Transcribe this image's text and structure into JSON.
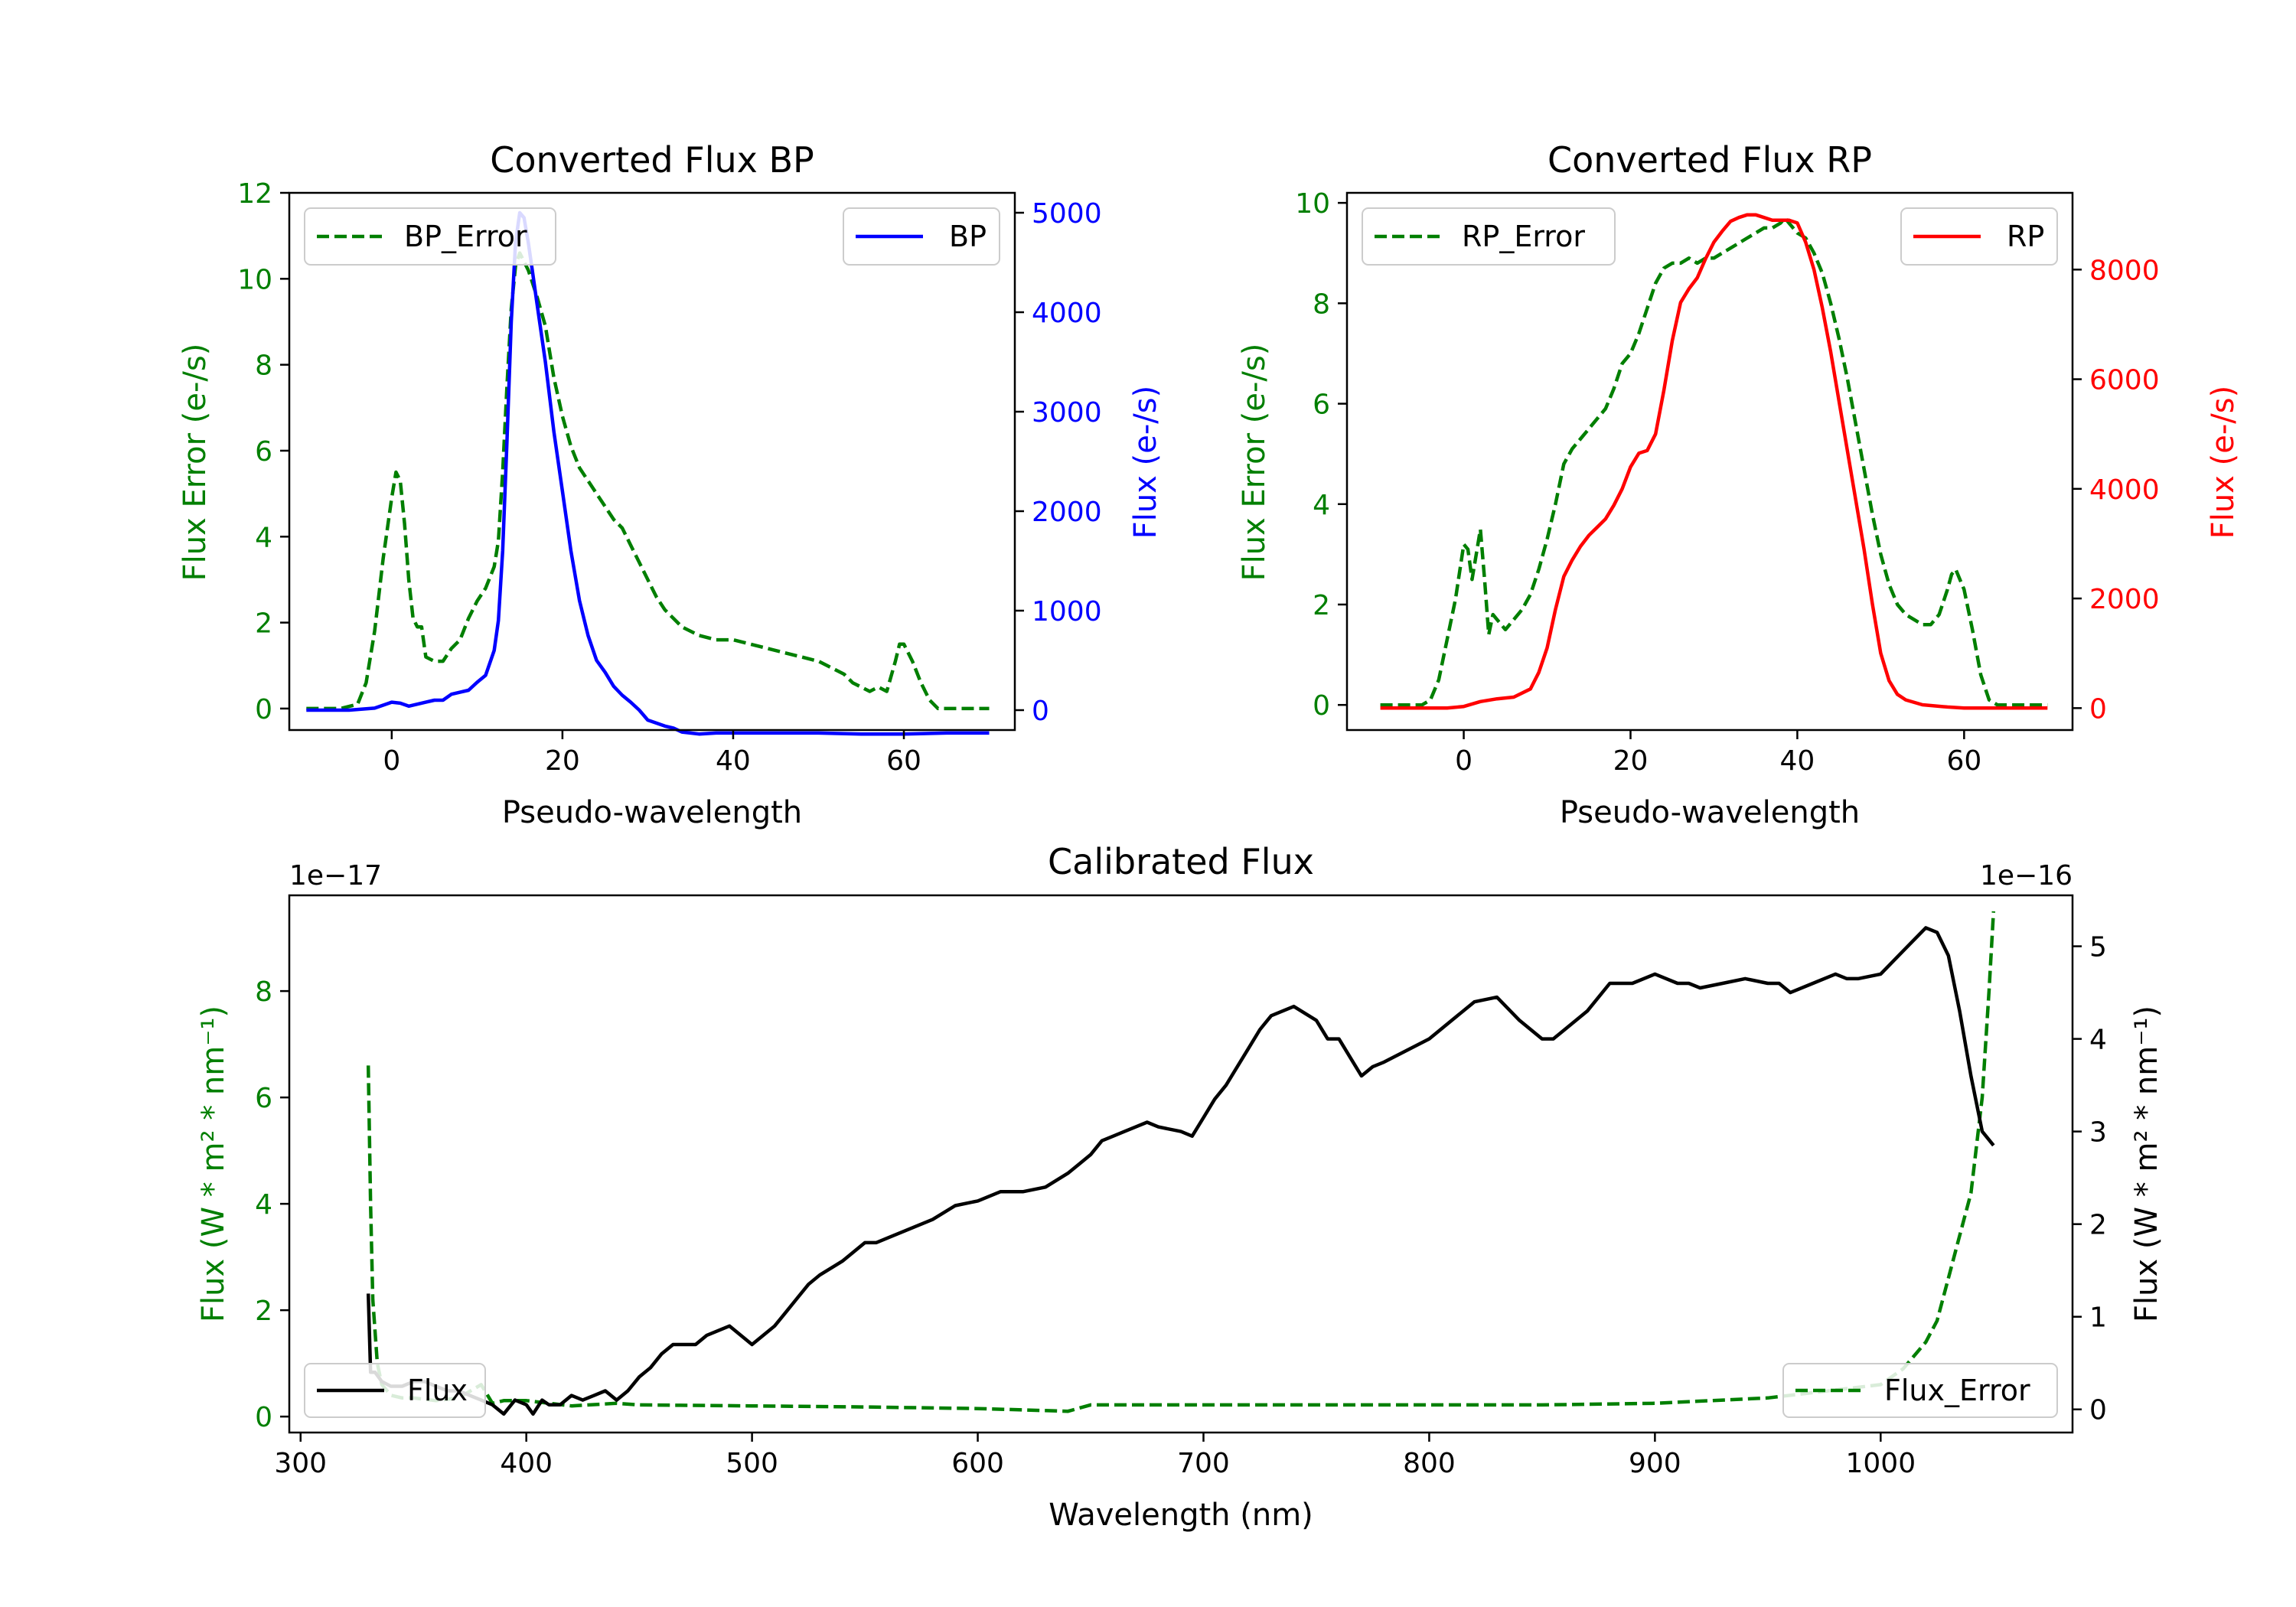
{
  "colors": {
    "error": "#007f00",
    "bp": "#0000ff",
    "rp": "#ff0000",
    "flux": "#000000",
    "axes": "#000000",
    "legend_border": "#cccccc"
  },
  "chart_data": [
    {
      "id": "bp",
      "type": "line",
      "title": "Converted Flux BP",
      "xlabel": "Pseudo-wavelength",
      "ylabel_left": "Flux Error (e-/s)",
      "ylabel_right": "Flux (e-/s)",
      "xlim": [
        -12,
        73
      ],
      "ylim_left": [
        -0.5,
        12.0
      ],
      "ylim_right": [
        -200,
        5200
      ],
      "xticks": [
        0,
        20,
        40,
        60
      ],
      "yticks_left": [
        0,
        2,
        4,
        6,
        8,
        10,
        12
      ],
      "yticks_right": [
        0,
        1000,
        2000,
        3000,
        4000,
        5000
      ],
      "legend_left": "BP_Error",
      "legend_right": "BP",
      "series": [
        {
          "name": "BP_Error",
          "axis": "left",
          "style": "dashed",
          "color_key": "error",
          "x": [
            -10,
            -6,
            -4,
            -3,
            -2,
            -1,
            0,
            0.5,
            1,
            1.5,
            2,
            2.5,
            3,
            3.5,
            4,
            5,
            6,
            7,
            8,
            9,
            10,
            11,
            12,
            12.5,
            13,
            13.5,
            14,
            14.5,
            15,
            16,
            17,
            18,
            19,
            20,
            21,
            22,
            23,
            24,
            25,
            26,
            27,
            28,
            29,
            30,
            31,
            32,
            34,
            36,
            38,
            40,
            42,
            44,
            46,
            48,
            50,
            52,
            53,
            54,
            55,
            56,
            57,
            58,
            59,
            59.5,
            60,
            61,
            62,
            63,
            64,
            65,
            70
          ],
          "y": [
            0,
            0,
            0.1,
            0.6,
            1.8,
            3.5,
            4.9,
            5.5,
            5.3,
            4.3,
            3.0,
            2.1,
            1.9,
            1.9,
            1.2,
            1.1,
            1.1,
            1.4,
            1.6,
            2.1,
            2.5,
            2.8,
            3.3,
            3.9,
            5.5,
            7.5,
            9.3,
            10.3,
            10.6,
            10.2,
            9.6,
            8.9,
            7.7,
            6.8,
            6.1,
            5.6,
            5.3,
            5.0,
            4.7,
            4.4,
            4.2,
            3.8,
            3.4,
            3.0,
            2.6,
            2.3,
            1.9,
            1.7,
            1.6,
            1.6,
            1.5,
            1.4,
            1.3,
            1.2,
            1.1,
            0.9,
            0.8,
            0.6,
            0.5,
            0.4,
            0.5,
            0.4,
            1.1,
            1.5,
            1.5,
            1.1,
            0.6,
            0.2,
            0,
            0,
            0
          ]
        },
        {
          "name": "BP",
          "axis": "right",
          "style": "solid",
          "color_key": "bp",
          "x": [
            -10,
            -5,
            -2,
            0,
            1,
            2,
            3,
            4,
            5,
            6,
            7,
            8,
            9,
            10,
            11,
            12,
            12.5,
            13,
            13.5,
            14,
            14.5,
            15,
            15.5,
            16,
            16.5,
            17,
            18,
            19,
            20,
            21,
            22,
            23,
            24,
            25,
            26,
            27,
            28,
            29,
            30,
            31,
            32,
            33,
            34,
            35,
            36,
            38,
            40,
            45,
            50,
            55,
            60,
            65,
            70
          ],
          "y": [
            0,
            0,
            20,
            80,
            70,
            40,
            60,
            80,
            100,
            100,
            160,
            180,
            200,
            280,
            350,
            600,
            900,
            1600,
            2700,
            3900,
            4700,
            5000,
            4950,
            4700,
            4400,
            4100,
            3500,
            2800,
            2200,
            1600,
            1100,
            750,
            500,
            380,
            240,
            150,
            80,
            0,
            -100,
            -130,
            -160,
            -180,
            -220,
            -230,
            -240,
            -230,
            -230,
            -230,
            -230,
            -240,
            -240,
            -230,
            -230
          ]
        }
      ]
    },
    {
      "id": "rp",
      "type": "line",
      "title": "Converted Flux RP",
      "xlabel": "Pseudo-wavelength",
      "ylabel_left": "Flux Error (e-/s)",
      "ylabel_right": "Flux (e-/s)",
      "xlim": [
        -14,
        73
      ],
      "ylim_left": [
        -0.5,
        10.2
      ],
      "ylim_right": [
        -400,
        9400
      ],
      "xticks": [
        0,
        20,
        40,
        60
      ],
      "yticks_left": [
        0,
        2,
        4,
        6,
        8,
        10
      ],
      "yticks_right": [
        0,
        2000,
        4000,
        6000,
        8000
      ],
      "legend_left": "RP_Error",
      "legend_right": "RP",
      "series": [
        {
          "name": "RP_Error",
          "axis": "left",
          "style": "dashed",
          "color_key": "error",
          "x": [
            -10,
            -5,
            -4,
            -3,
            -2,
            -1,
            0,
            0.5,
            1,
            1.5,
            2,
            2.5,
            3,
            3.5,
            4,
            5,
            6,
            7,
            8,
            9,
            10,
            11,
            12,
            13,
            14,
            15,
            16,
            17,
            18,
            19,
            20,
            21,
            22,
            23,
            24,
            25,
            26,
            27,
            28,
            29,
            30,
            31,
            32,
            33,
            34,
            35,
            36,
            37,
            38,
            38.5,
            39,
            40,
            41,
            42,
            43,
            44,
            45,
            46,
            47,
            48,
            49,
            50,
            51,
            52,
            53,
            54,
            55,
            56,
            57,
            58,
            58.5,
            59,
            60,
            61,
            62,
            63,
            64,
            65,
            70
          ],
          "y": [
            0,
            0,
            0.1,
            0.5,
            1.3,
            2.1,
            3.2,
            3.1,
            2.5,
            3.0,
            3.5,
            2.5,
            1.4,
            1.8,
            1.7,
            1.5,
            1.7,
            1.9,
            2.2,
            2.7,
            3.3,
            4.0,
            4.8,
            5.1,
            5.3,
            5.5,
            5.7,
            5.9,
            6.3,
            6.8,
            7.0,
            7.4,
            7.9,
            8.4,
            8.7,
            8.8,
            8.8,
            8.9,
            8.8,
            8.9,
            8.9,
            9.0,
            9.1,
            9.2,
            9.3,
            9.4,
            9.5,
            9.5,
            9.6,
            9.7,
            9.6,
            9.4,
            9.3,
            9.0,
            8.6,
            8.0,
            7.3,
            6.5,
            5.6,
            4.7,
            3.8,
            3.0,
            2.4,
            2.0,
            1.8,
            1.7,
            1.6,
            1.6,
            1.8,
            2.3,
            2.6,
            2.7,
            2.3,
            1.5,
            0.6,
            0.1,
            0,
            0,
            0
          ]
        },
        {
          "name": "RP",
          "axis": "right",
          "style": "solid",
          "color_key": "rp",
          "x": [
            -10,
            -5,
            -2,
            0,
            2,
            4,
            6,
            8,
            9,
            10,
            11,
            12,
            13,
            14,
            15,
            16,
            17,
            18,
            19,
            20,
            21,
            22,
            23,
            24,
            25,
            26,
            27,
            28,
            29,
            30,
            31,
            32,
            33,
            34,
            35,
            36,
            37,
            38,
            39,
            40,
            41,
            42,
            43,
            44,
            45,
            46,
            47,
            48,
            49,
            50,
            51,
            52,
            53,
            55,
            58,
            60,
            65,
            70
          ],
          "y": [
            0,
            0,
            0,
            30,
            120,
            170,
            200,
            350,
            650,
            1100,
            1800,
            2400,
            2700,
            2950,
            3150,
            3300,
            3450,
            3700,
            4000,
            4400,
            4650,
            4700,
            5000,
            5800,
            6700,
            7400,
            7650,
            7850,
            8200,
            8500,
            8700,
            8880,
            8950,
            9000,
            9000,
            8950,
            8900,
            8900,
            8900,
            8850,
            8500,
            8000,
            7300,
            6500,
            5600,
            4700,
            3800,
            2900,
            1900,
            1000,
            500,
            250,
            150,
            60,
            20,
            0,
            0,
            0
          ]
        }
      ]
    },
    {
      "id": "calibrated",
      "type": "line",
      "title": "Calibrated Flux",
      "xlabel": "Wavelength (nm)",
      "ylabel_left": "Flux (W * m² * nm⁻¹)",
      "ylabel_right": "Flux (W * m² * nm⁻¹)",
      "offset_left": "1e−17",
      "offset_right": "1e−16",
      "xlim": [
        295,
        1085
      ],
      "ylim_left": [
        -0.3,
        9.8
      ],
      "ylim_right": [
        -0.25,
        5.55
      ],
      "xticks": [
        300,
        400,
        500,
        600,
        700,
        800,
        900,
        1000
      ],
      "yticks_left": [
        0,
        2,
        4,
        6,
        8
      ],
      "yticks_right": [
        0,
        1,
        2,
        3,
        4,
        5
      ],
      "legend_left": "Flux",
      "legend_right": "Flux_Error",
      "series": [
        {
          "name": "Flux_Error",
          "axis": "left",
          "style": "dashed",
          "color_key": "error",
          "x": [
            330,
            331,
            332,
            334,
            336,
            340,
            345,
            350,
            360,
            370,
            380,
            385,
            390,
            400,
            420,
            440,
            450,
            500,
            550,
            600,
            640,
            650,
            700,
            750,
            800,
            850,
            900,
            950,
            1000,
            1010,
            1020,
            1025,
            1030,
            1035,
            1040,
            1045,
            1048,
            1050
          ],
          "y": [
            6.6,
            4.0,
            2.2,
            1.0,
            0.6,
            0.4,
            0.35,
            0.35,
            0.3,
            0.35,
            0.6,
            0.25,
            0.3,
            0.3,
            0.2,
            0.25,
            0.22,
            0.2,
            0.18,
            0.15,
            0.1,
            0.22,
            0.22,
            0.22,
            0.22,
            0.22,
            0.25,
            0.35,
            0.6,
            0.9,
            1.4,
            1.8,
            2.6,
            3.4,
            4.2,
            6.0,
            8.0,
            9.5
          ]
        },
        {
          "name": "Flux",
          "axis": "right",
          "style": "solid",
          "color_key": "flux",
          "x": [
            330,
            331,
            333,
            336,
            340,
            345,
            350,
            355,
            360,
            365,
            370,
            375,
            380,
            385,
            390,
            395,
            400,
            403,
            407,
            410,
            415,
            420,
            425,
            430,
            435,
            440,
            445,
            450,
            455,
            460,
            465,
            470,
            475,
            480,
            490,
            500,
            505,
            510,
            515,
            520,
            525,
            530,
            540,
            550,
            555,
            560,
            570,
            580,
            590,
            600,
            610,
            620,
            630,
            640,
            645,
            650,
            655,
            660,
            665,
            670,
            675,
            680,
            690,
            695,
            700,
            705,
            710,
            715,
            720,
            725,
            730,
            740,
            750,
            755,
            760,
            765,
            770,
            775,
            780,
            800,
            810,
            820,
            830,
            840,
            850,
            855,
            860,
            870,
            880,
            890,
            900,
            910,
            915,
            920,
            930,
            940,
            950,
            955,
            960,
            970,
            980,
            985,
            990,
            1000,
            1010,
            1020,
            1025,
            1030,
            1035,
            1040,
            1045,
            1050
          ],
          "y": [
            1.25,
            0.4,
            0.4,
            0.3,
            0.25,
            0.25,
            0.3,
            0.3,
            0.25,
            0.2,
            0.2,
            0.15,
            0.1,
            0.05,
            -0.05,
            0.1,
            0.05,
            -0.05,
            0.1,
            0.05,
            0.05,
            0.15,
            0.1,
            0.15,
            0.2,
            0.1,
            0.2,
            0.35,
            0.45,
            0.6,
            0.7,
            0.7,
            0.7,
            0.8,
            0.9,
            0.7,
            0.8,
            0.9,
            1.05,
            1.2,
            1.35,
            1.45,
            1.6,
            1.8,
            1.8,
            1.85,
            1.95,
            2.05,
            2.2,
            2.25,
            2.35,
            2.35,
            2.4,
            2.55,
            2.65,
            2.75,
            2.9,
            2.95,
            3.0,
            3.05,
            3.1,
            3.05,
            3.0,
            2.95,
            3.15,
            3.35,
            3.5,
            3.7,
            3.9,
            4.1,
            4.25,
            4.35,
            4.2,
            4.0,
            4.0,
            3.8,
            3.6,
            3.7,
            3.75,
            4.0,
            4.2,
            4.4,
            4.45,
            4.2,
            4.0,
            4.0,
            4.1,
            4.3,
            4.6,
            4.6,
            4.7,
            4.6,
            4.6,
            4.55,
            4.6,
            4.65,
            4.6,
            4.6,
            4.5,
            4.6,
            4.7,
            4.65,
            4.65,
            4.7,
            4.95,
            5.2,
            5.15,
            4.9,
            4.3,
            3.6,
            3.0,
            2.85
          ]
        }
      ]
    }
  ]
}
